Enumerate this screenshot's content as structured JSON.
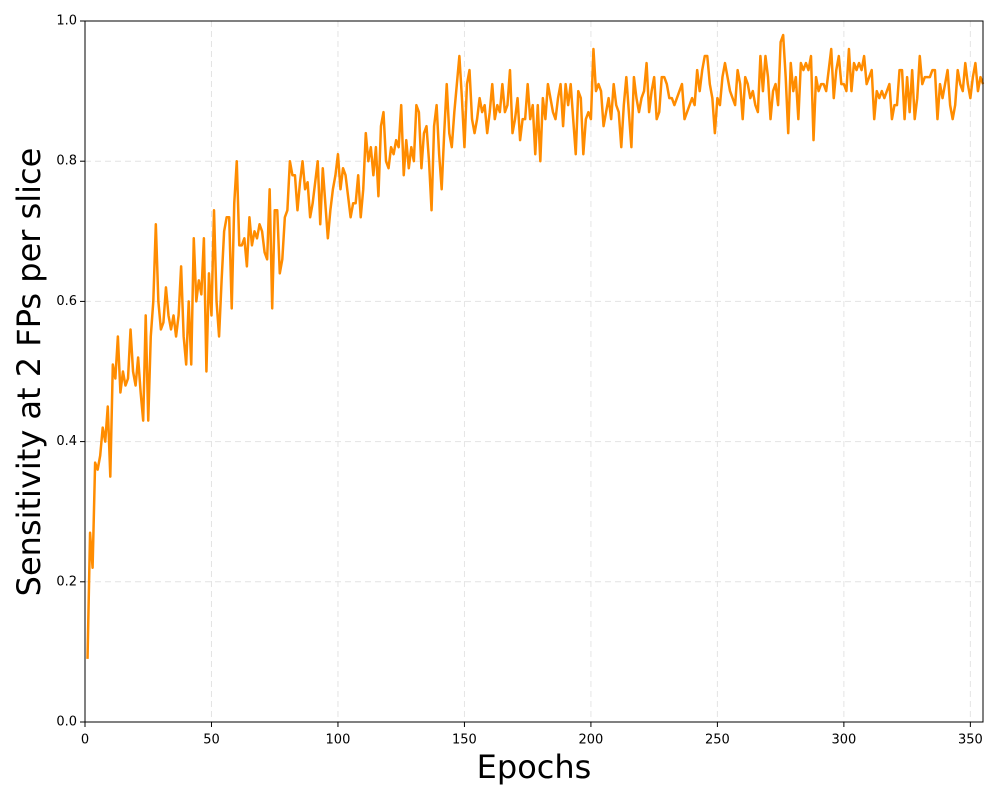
{
  "chart_data": {
    "type": "line",
    "x_label": "Epochs",
    "y_label": "Sensitivity at 2 FPs per slice",
    "x": [
      1,
      2,
      3,
      4,
      5,
      6,
      7,
      8,
      9,
      10,
      11,
      12,
      13,
      14,
      15,
      16,
      17,
      18,
      19,
      20,
      21,
      22,
      23,
      24,
      25,
      26,
      27,
      28,
      29,
      30,
      31,
      32,
      33,
      34,
      35,
      36,
      37,
      38,
      39,
      40,
      41,
      42,
      43,
      44,
      45,
      46,
      47,
      48,
      49,
      50,
      51,
      52,
      53,
      54,
      55,
      56,
      57,
      58,
      59,
      60,
      61,
      62,
      63,
      64,
      65,
      66,
      67,
      68,
      69,
      70,
      71,
      72,
      73,
      74,
      75,
      76,
      77,
      78,
      79,
      80,
      81,
      82,
      83,
      84,
      85,
      86,
      87,
      88,
      89,
      90,
      91,
      92,
      93,
      94,
      95,
      96,
      97,
      98,
      99,
      100,
      101,
      102,
      103,
      104,
      105,
      106,
      107,
      108,
      109,
      110,
      111,
      112,
      113,
      114,
      115,
      116,
      117,
      118,
      119,
      120,
      121,
      122,
      123,
      124,
      125,
      126,
      127,
      128,
      129,
      130,
      131,
      132,
      133,
      134,
      135,
      136,
      137,
      138,
      139,
      140,
      141,
      142,
      143,
      144,
      145,
      146,
      147,
      148,
      149,
      150,
      151,
      152,
      153,
      154,
      155,
      156,
      157,
      158,
      159,
      160,
      161,
      162,
      163,
      164,
      165,
      166,
      167,
      168,
      169,
      170,
      171,
      172,
      173,
      174,
      175,
      176,
      177,
      178,
      179,
      180,
      181,
      182,
      183,
      184,
      185,
      186,
      187,
      188,
      189,
      190,
      191,
      192,
      193,
      194,
      195,
      196,
      197,
      198,
      199,
      200,
      201,
      202,
      203,
      204,
      205,
      206,
      207,
      208,
      209,
      210,
      211,
      212,
      213,
      214,
      215,
      216,
      217,
      218,
      219,
      220,
      221,
      222,
      223,
      224,
      225,
      226,
      227,
      228,
      229,
      230,
      231,
      232,
      233,
      234,
      235,
      236,
      237,
      238,
      239,
      240,
      241,
      242,
      243,
      244,
      245,
      246,
      247,
      248,
      249,
      250,
      251,
      252,
      253,
      254,
      255,
      256,
      257,
      258,
      259,
      260,
      261,
      262,
      263,
      264,
      265,
      266,
      267,
      268,
      269,
      270,
      271,
      272,
      273,
      274,
      275,
      276,
      277,
      278,
      279,
      280,
      281,
      282,
      283,
      284,
      285,
      286,
      287,
      288,
      289,
      290,
      291,
      292,
      293,
      294,
      295,
      296,
      297,
      298,
      299,
      300,
      301,
      302,
      303,
      304,
      305,
      306,
      307,
      308,
      309,
      310,
      311,
      312,
      313,
      314,
      315,
      316,
      317,
      318,
      319,
      320,
      321,
      322,
      323,
      324,
      325,
      326,
      327,
      328,
      329,
      330,
      331,
      332,
      333,
      334,
      335,
      336,
      337,
      338,
      339,
      340,
      341,
      342,
      343,
      344,
      345,
      346,
      347,
      348,
      349,
      350,
      351,
      352,
      353,
      354,
      355
    ],
    "series": [
      {
        "color": "#ff8c00",
        "values": [
          0.09,
          0.27,
          0.22,
          0.37,
          0.36,
          0.38,
          0.42,
          0.4,
          0.45,
          0.35,
          0.51,
          0.49,
          0.55,
          0.47,
          0.5,
          0.48,
          0.49,
          0.56,
          0.5,
          0.48,
          0.52,
          0.47,
          0.43,
          0.58,
          0.43,
          0.55,
          0.6,
          0.71,
          0.6,
          0.56,
          0.57,
          0.62,
          0.58,
          0.56,
          0.58,
          0.55,
          0.58,
          0.65,
          0.55,
          0.51,
          0.6,
          0.51,
          0.69,
          0.6,
          0.63,
          0.61,
          0.69,
          0.5,
          0.64,
          0.58,
          0.73,
          0.6,
          0.55,
          0.63,
          0.7,
          0.72,
          0.72,
          0.59,
          0.74,
          0.8,
          0.68,
          0.68,
          0.69,
          0.65,
          0.72,
          0.68,
          0.7,
          0.69,
          0.71,
          0.7,
          0.67,
          0.66,
          0.76,
          0.59,
          0.73,
          0.73,
          0.64,
          0.66,
          0.72,
          0.73,
          0.8,
          0.78,
          0.78,
          0.73,
          0.77,
          0.8,
          0.76,
          0.77,
          0.72,
          0.74,
          0.77,
          0.8,
          0.71,
          0.79,
          0.74,
          0.69,
          0.73,
          0.76,
          0.78,
          0.81,
          0.76,
          0.79,
          0.78,
          0.75,
          0.72,
          0.74,
          0.74,
          0.78,
          0.72,
          0.76,
          0.84,
          0.8,
          0.82,
          0.78,
          0.82,
          0.75,
          0.85,
          0.87,
          0.8,
          0.79,
          0.82,
          0.81,
          0.83,
          0.82,
          0.88,
          0.78,
          0.83,
          0.79,
          0.82,
          0.8,
          0.88,
          0.87,
          0.79,
          0.84,
          0.85,
          0.8,
          0.73,
          0.85,
          0.88,
          0.81,
          0.76,
          0.84,
          0.91,
          0.84,
          0.82,
          0.87,
          0.91,
          0.95,
          0.89,
          0.82,
          0.91,
          0.93,
          0.86,
          0.84,
          0.86,
          0.89,
          0.87,
          0.88,
          0.84,
          0.87,
          0.91,
          0.86,
          0.88,
          0.87,
          0.91,
          0.87,
          0.88,
          0.93,
          0.84,
          0.86,
          0.89,
          0.83,
          0.86,
          0.86,
          0.91,
          0.86,
          0.88,
          0.81,
          0.88,
          0.8,
          0.89,
          0.86,
          0.91,
          0.89,
          0.87,
          0.86,
          0.89,
          0.91,
          0.85,
          0.91,
          0.88,
          0.91,
          0.86,
          0.81,
          0.9,
          0.89,
          0.81,
          0.86,
          0.87,
          0.86,
          0.96,
          0.9,
          0.91,
          0.9,
          0.85,
          0.87,
          0.89,
          0.86,
          0.91,
          0.88,
          0.87,
          0.82,
          0.88,
          0.92,
          0.87,
          0.82,
          0.92,
          0.89,
          0.87,
          0.89,
          0.9,
          0.94,
          0.87,
          0.9,
          0.92,
          0.86,
          0.87,
          0.92,
          0.92,
          0.91,
          0.89,
          0.89,
          0.88,
          0.89,
          0.9,
          0.91,
          0.86,
          0.87,
          0.88,
          0.89,
          0.88,
          0.93,
          0.9,
          0.93,
          0.95,
          0.95,
          0.91,
          0.89,
          0.84,
          0.89,
          0.88,
          0.92,
          0.94,
          0.92,
          0.9,
          0.89,
          0.88,
          0.93,
          0.91,
          0.86,
          0.92,
          0.91,
          0.89,
          0.9,
          0.88,
          0.87,
          0.95,
          0.9,
          0.95,
          0.92,
          0.86,
          0.9,
          0.91,
          0.88,
          0.97,
          0.98,
          0.92,
          0.84,
          0.94,
          0.9,
          0.92,
          0.86,
          0.94,
          0.93,
          0.94,
          0.93,
          0.95,
          0.83,
          0.92,
          0.9,
          0.91,
          0.91,
          0.9,
          0.93,
          0.96,
          0.89,
          0.93,
          0.95,
          0.91,
          0.91,
          0.9,
          0.96,
          0.9,
          0.94,
          0.93,
          0.94,
          0.93,
          0.95,
          0.91,
          0.92,
          0.93,
          0.86,
          0.9,
          0.89,
          0.9,
          0.89,
          0.9,
          0.91,
          0.86,
          0.88,
          0.88,
          0.93,
          0.93,
          0.86,
          0.92,
          0.87,
          0.93,
          0.86,
          0.89,
          0.95,
          0.91,
          0.92,
          0.92,
          0.92,
          0.93,
          0.93,
          0.86,
          0.91,
          0.89,
          0.91,
          0.93,
          0.88,
          0.86,
          0.88,
          0.93,
          0.91,
          0.9,
          0.94,
          0.91,
          0.89,
          0.92,
          0.94,
          0.9,
          0.92,
          0.91
        ]
      }
    ],
    "xlim": [
      0,
      355
    ],
    "ylim": [
      0,
      1
    ],
    "xticks": [
      0,
      50,
      100,
      150,
      200,
      250,
      300,
      350
    ],
    "yticks": [
      {
        "value": 0,
        "label": "0.0"
      },
      0.2,
      0.4,
      0.6,
      0.8,
      {
        "value": 1,
        "label": "1.0"
      }
    ],
    "grid": true
  }
}
